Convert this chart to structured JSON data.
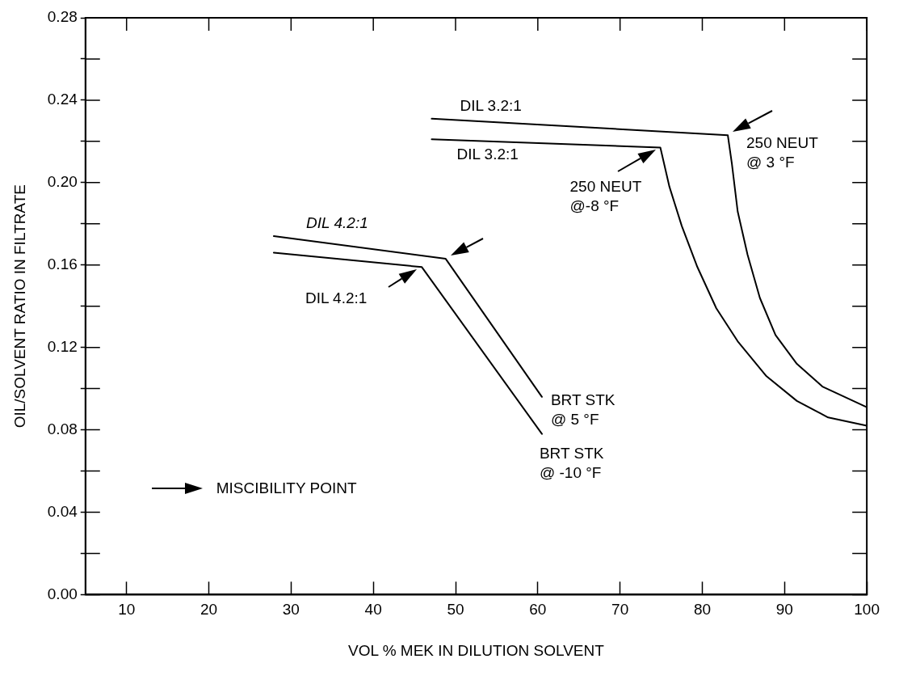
{
  "chart_data": {
    "type": "line",
    "xlabel": "VOL % MEK IN DILUTION SOLVENT",
    "ylabel": "OIL/SOLVENT RATIO IN FILTRATE",
    "xlim": [
      5,
      100
    ],
    "xticks": [
      10,
      20,
      30,
      40,
      50,
      60,
      70,
      80,
      90,
      100
    ],
    "ylim": [
      0,
      0.28
    ],
    "yticks": [
      {
        "value": 0,
        "label": "0.00"
      },
      {
        "value": 0.02,
        "label": null
      },
      {
        "value": 0.04,
        "label": "0.04"
      },
      {
        "value": 0.06,
        "label": null
      },
      {
        "value": 0.08,
        "label": "0.08"
      },
      {
        "value": 0.1,
        "label": null
      },
      {
        "value": 0.12,
        "label": "0.12"
      },
      {
        "value": 0.14,
        "label": null
      },
      {
        "value": 0.16,
        "label": "0.16"
      },
      {
        "value": 0.18,
        "label": null
      },
      {
        "value": 0.2,
        "label": "0.20"
      },
      {
        "value": 0.22,
        "label": null
      },
      {
        "value": 0.24,
        "label": "0.24"
      },
      {
        "value": 0.26,
        "label": null
      },
      {
        "value": 0.28,
        "label": "0.28"
      }
    ],
    "grid": false,
    "legend": false,
    "marker": "none",
    "line_style": "solid",
    "series": [
      {
        "name": "DIL 3.2:1",
        "color": "#000000",
        "x": [
          47.1,
          83.1,
          83.6,
          84.3,
          85.5,
          87.0,
          88.9,
          91.5,
          94.6,
          100
        ],
        "values": [
          0.231,
          0.223,
          0.209,
          0.186,
          0.165,
          0.144,
          0.126,
          0.112,
          0.101,
          0.091
        ]
      },
      {
        "name": "DIL 3.2:1",
        "color": "#000000",
        "x": [
          47.1,
          74.9,
          76.0,
          77.5,
          79.4,
          81.7,
          84.3,
          87.8,
          91.5,
          95.3,
          100
        ],
        "values": [
          0.221,
          0.217,
          0.198,
          0.179,
          0.159,
          0.139,
          0.123,
          0.106,
          0.094,
          0.086,
          0.082
        ]
      },
      {
        "name": "DIL 4.2:1",
        "color": "#000000",
        "x": [
          27.9,
          48.8,
          60.5
        ],
        "values": [
          0.174,
          0.163,
          0.096
        ]
      },
      {
        "name": "DIL 4.2:1",
        "color": "#000000",
        "x": [
          27.9,
          45.9,
          60.5
        ],
        "values": [
          0.166,
          0.159,
          0.078
        ]
      }
    ],
    "annotations": [
      {
        "text": "250 NEUT\n@ 3 °F",
        "x": 83.1,
        "y": 0.223
      },
      {
        "text": "250 NEUT\n@-8 °F",
        "x": 74.9,
        "y": 0.217
      },
      {
        "text": "BRT STK\n@ 5 °F",
        "x": 60.5,
        "y": 0.096
      },
      {
        "text": "BRT STK\n@ -10 °F",
        "x": 60.5,
        "y": 0.078
      },
      "MISCIBILITY POINT"
    ]
  }
}
